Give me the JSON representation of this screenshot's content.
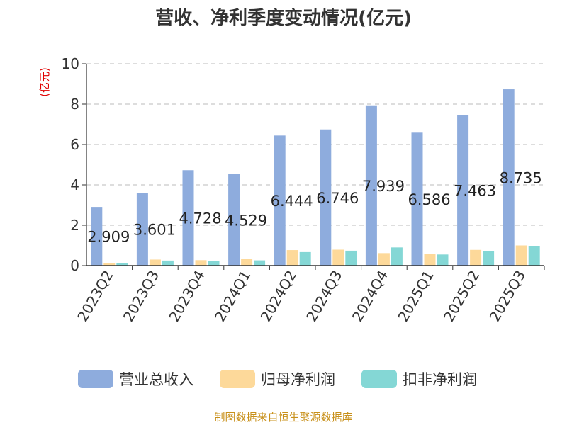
{
  "chart_data": {
    "type": "bar",
    "title": "营收、净利季度变动情况(亿元)",
    "unit_label": "(亿元)",
    "categories": [
      "2023Q2",
      "2023Q3",
      "2023Q4",
      "2024Q1",
      "2024Q2",
      "2024Q3",
      "2024Q4",
      "2025Q1",
      "2025Q2",
      "2025Q3"
    ],
    "series": [
      {
        "name": "营业总收入",
        "color": "#8eacdd",
        "values": [
          2.909,
          3.601,
          4.728,
          4.529,
          6.444,
          6.746,
          7.939,
          6.586,
          7.463,
          8.735
        ]
      },
      {
        "name": "归母净利润",
        "color": "#fdd99a",
        "values": [
          0.14,
          0.3,
          0.27,
          0.32,
          0.77,
          0.79,
          0.62,
          0.58,
          0.78,
          1.0
        ]
      },
      {
        "name": "扣非净利润",
        "color": "#84d7d5",
        "values": [
          0.12,
          0.25,
          0.23,
          0.26,
          0.67,
          0.74,
          0.9,
          0.55,
          0.73,
          0.95
        ]
      }
    ],
    "data_labels": [
      "2.909",
      "3.601",
      "4.728",
      "4.529",
      "6.444",
      "6.746",
      "7.939",
      "6.586",
      "7.463",
      "8.735"
    ],
    "ylim": [
      0,
      10
    ],
    "yticks": [
      0,
      2,
      4,
      6,
      8,
      10
    ],
    "grid": true,
    "legend_position": "bottom"
  },
  "source": "制图数据来自恒生聚源数据库"
}
